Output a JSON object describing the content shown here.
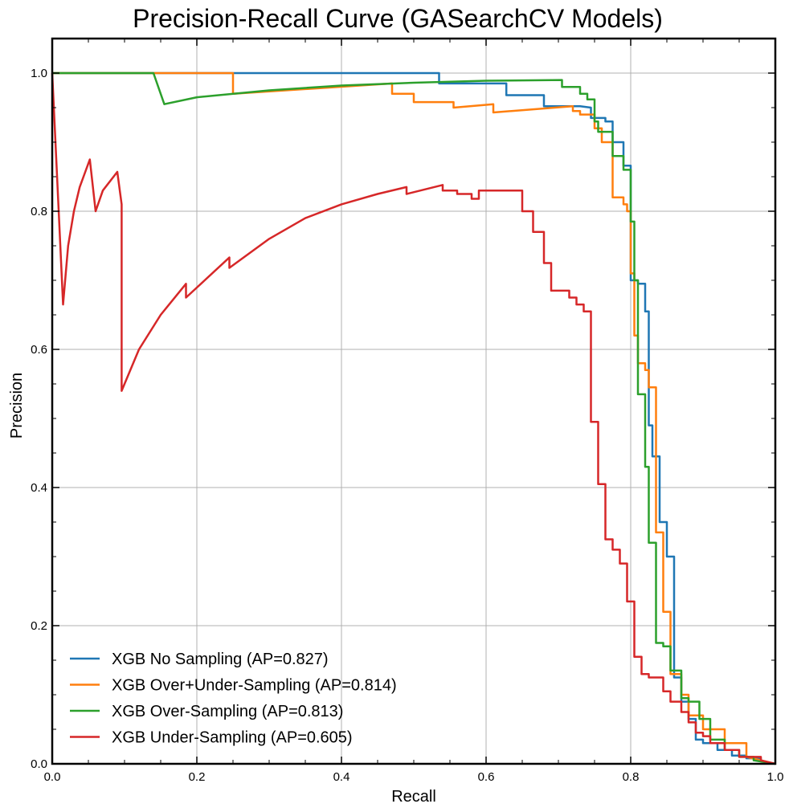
{
  "chart_data": {
    "type": "line",
    "title": "Precision-Recall Curve (GASearchCV Models)",
    "xlabel": "Recall",
    "ylabel": "Precision",
    "xlim": [
      0,
      1
    ],
    "ylim": [
      0,
      1.05
    ],
    "xticks": [
      0.0,
      0.2,
      0.4,
      0.6,
      0.8,
      1.0
    ],
    "yticks": [
      0.0,
      0.2,
      0.4,
      0.6,
      0.8,
      1.0
    ],
    "xtick_labels": [
      "0.0",
      "0.2",
      "0.4",
      "0.6",
      "0.8",
      "1.0"
    ],
    "ytick_labels": [
      "0.0",
      "0.2",
      "0.4",
      "0.6",
      "0.8",
      "1.0"
    ],
    "grid": true,
    "legend_position": "lower-left",
    "series": [
      {
        "name": "XGB No Sampling (AP=0.827)",
        "color": "#1f77b4",
        "x": [
          0.0,
          0.535,
          0.535,
          0.628,
          0.628,
          0.645,
          0.645,
          0.68,
          0.68,
          0.73,
          0.745,
          0.745,
          0.765,
          0.765,
          0.775,
          0.775,
          0.79,
          0.79,
          0.8,
          0.8,
          0.81,
          0.81,
          0.82,
          0.82,
          0.825,
          0.825,
          0.83,
          0.83,
          0.84,
          0.84,
          0.85,
          0.85,
          0.86,
          0.86,
          0.87,
          0.87,
          0.88,
          0.88,
          0.89,
          0.89,
          0.9,
          0.9,
          0.92,
          0.92,
          0.94,
          0.94,
          0.96,
          0.96,
          0.98,
          0.98,
          1.0
        ],
        "y": [
          1.0,
          1.0,
          0.985,
          0.985,
          0.968,
          0.968,
          0.968,
          0.968,
          0.952,
          0.952,
          0.95,
          0.935,
          0.935,
          0.93,
          0.93,
          0.9,
          0.9,
          0.866,
          0.866,
          0.7,
          0.7,
          0.695,
          0.695,
          0.655,
          0.655,
          0.49,
          0.49,
          0.445,
          0.445,
          0.35,
          0.35,
          0.3,
          0.3,
          0.125,
          0.125,
          0.09,
          0.09,
          0.065,
          0.065,
          0.035,
          0.035,
          0.03,
          0.03,
          0.02,
          0.02,
          0.012,
          0.012,
          0.008,
          0.008,
          0.004,
          0.0
        ]
      },
      {
        "name": "XGB Over+Under-Sampling (AP=0.814)",
        "color": "#ff7f0e",
        "x": [
          0.0,
          0.14,
          0.25,
          0.25,
          0.47,
          0.47,
          0.5,
          0.5,
          0.555,
          0.555,
          0.61,
          0.61,
          0.72,
          0.72,
          0.73,
          0.73,
          0.74,
          0.74,
          0.75,
          0.75,
          0.76,
          0.76,
          0.775,
          0.775,
          0.79,
          0.79,
          0.795,
          0.795,
          0.8,
          0.8,
          0.805,
          0.805,
          0.81,
          0.81,
          0.82,
          0.82,
          0.825,
          0.825,
          0.835,
          0.835,
          0.845,
          0.845,
          0.855,
          0.855,
          0.87,
          0.87,
          0.88,
          0.88,
          0.9,
          0.9,
          0.93,
          0.93,
          0.96,
          0.96,
          1.0
        ],
        "y": [
          1.0,
          1.0,
          1.0,
          0.97,
          0.985,
          0.97,
          0.97,
          0.958,
          0.958,
          0.95,
          0.955,
          0.943,
          0.952,
          0.945,
          0.945,
          0.94,
          0.94,
          0.94,
          0.94,
          0.92,
          0.92,
          0.9,
          0.9,
          0.82,
          0.82,
          0.81,
          0.81,
          0.8,
          0.8,
          0.71,
          0.71,
          0.62,
          0.62,
          0.58,
          0.58,
          0.57,
          0.57,
          0.545,
          0.545,
          0.335,
          0.335,
          0.22,
          0.22,
          0.13,
          0.13,
          0.1,
          0.1,
          0.07,
          0.07,
          0.05,
          0.05,
          0.03,
          0.03,
          0.01,
          0.0
        ]
      },
      {
        "name": "XGB Over-Sampling (AP=0.813)",
        "color": "#2ca02c",
        "x": [
          0.0,
          0.14,
          0.155,
          0.2,
          0.3,
          0.4,
          0.5,
          0.6,
          0.705,
          0.705,
          0.73,
          0.73,
          0.74,
          0.74,
          0.75,
          0.75,
          0.755,
          0.755,
          0.765,
          0.765,
          0.775,
          0.775,
          0.79,
          0.79,
          0.8,
          0.8,
          0.805,
          0.805,
          0.81,
          0.81,
          0.82,
          0.82,
          0.825,
          0.825,
          0.835,
          0.835,
          0.845,
          0.845,
          0.855,
          0.855,
          0.87,
          0.87,
          0.88,
          0.88,
          0.895,
          0.895,
          0.91,
          0.91,
          0.93,
          0.93,
          0.95,
          0.95,
          0.97,
          0.97,
          1.0
        ],
        "y": [
          1.0,
          1.0,
          0.955,
          0.965,
          0.975,
          0.982,
          0.986,
          0.989,
          0.99,
          0.98,
          0.98,
          0.97,
          0.97,
          0.962,
          0.962,
          0.93,
          0.93,
          0.915,
          0.915,
          0.915,
          0.915,
          0.88,
          0.88,
          0.86,
          0.86,
          0.785,
          0.785,
          0.7,
          0.7,
          0.535,
          0.535,
          0.43,
          0.43,
          0.32,
          0.32,
          0.175,
          0.175,
          0.17,
          0.17,
          0.135,
          0.135,
          0.095,
          0.095,
          0.09,
          0.09,
          0.065,
          0.065,
          0.035,
          0.035,
          0.02,
          0.02,
          0.01,
          0.01,
          0.005,
          0.0
        ]
      },
      {
        "name": "XGB Under-Sampling (AP=0.605)",
        "color": "#d62728",
        "x": [
          0.0,
          0.015,
          0.022,
          0.03,
          0.038,
          0.052,
          0.06,
          0.07,
          0.09,
          0.096,
          0.096,
          0.12,
          0.15,
          0.185,
          0.185,
          0.245,
          0.245,
          0.3,
          0.35,
          0.4,
          0.45,
          0.49,
          0.49,
          0.54,
          0.54,
          0.56,
          0.56,
          0.58,
          0.58,
          0.59,
          0.59,
          0.65,
          0.65,
          0.665,
          0.665,
          0.68,
          0.68,
          0.69,
          0.69,
          0.715,
          0.715,
          0.725,
          0.725,
          0.735,
          0.735,
          0.745,
          0.745,
          0.755,
          0.755,
          0.765,
          0.765,
          0.775,
          0.775,
          0.785,
          0.785,
          0.795,
          0.795,
          0.805,
          0.805,
          0.815,
          0.815,
          0.825,
          0.825,
          0.845,
          0.845,
          0.855,
          0.855,
          0.87,
          0.87,
          0.88,
          0.88,
          0.89,
          0.89,
          0.9,
          0.9,
          0.91,
          0.91,
          0.93,
          0.93,
          0.95,
          0.95,
          0.98,
          0.98,
          1.0
        ],
        "y": [
          1.0,
          0.665,
          0.75,
          0.8,
          0.835,
          0.875,
          0.8,
          0.83,
          0.857,
          0.81,
          0.54,
          0.6,
          0.65,
          0.695,
          0.675,
          0.733,
          0.718,
          0.76,
          0.79,
          0.81,
          0.825,
          0.835,
          0.825,
          0.838,
          0.83,
          0.83,
          0.825,
          0.825,
          0.818,
          0.818,
          0.83,
          0.83,
          0.8,
          0.8,
          0.77,
          0.77,
          0.725,
          0.725,
          0.685,
          0.685,
          0.675,
          0.675,
          0.665,
          0.665,
          0.655,
          0.655,
          0.495,
          0.495,
          0.405,
          0.405,
          0.325,
          0.325,
          0.31,
          0.31,
          0.29,
          0.29,
          0.235,
          0.235,
          0.155,
          0.155,
          0.13,
          0.13,
          0.125,
          0.125,
          0.105,
          0.105,
          0.09,
          0.09,
          0.075,
          0.075,
          0.06,
          0.06,
          0.045,
          0.045,
          0.04,
          0.04,
          0.03,
          0.03,
          0.02,
          0.02,
          0.01,
          0.01,
          0.005,
          0.0
        ]
      }
    ]
  }
}
